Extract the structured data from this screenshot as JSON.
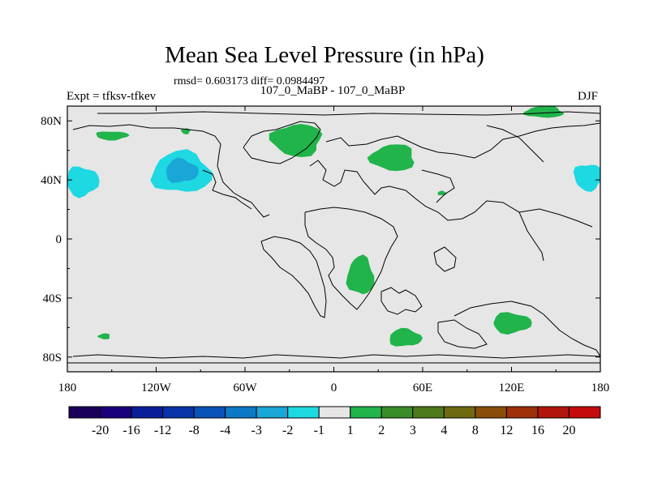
{
  "chart_data": {
    "type": "heatmap",
    "title": "Mean Sea Level Pressure (in hPa)",
    "stats_text": "rmsd= 0.603173 diff= 0.0984497",
    "subtitle": "107_0_MaBP - 107_0_MaBP",
    "left_label": "Expt = tfksv-tfkev",
    "right_label": "DJF",
    "xlabel": "",
    "ylabel": "",
    "x_range": [
      -180,
      180
    ],
    "y_range": [
      -90,
      90
    ],
    "x_ticks": [
      {
        "value": -180,
        "label": "180"
      },
      {
        "value": -120,
        "label": "120W"
      },
      {
        "value": -60,
        "label": "60W"
      },
      {
        "value": 0,
        "label": "0"
      },
      {
        "value": 60,
        "label": "60E"
      },
      {
        "value": 120,
        "label": "120E"
      },
      {
        "value": 180,
        "label": "180"
      }
    ],
    "y_ticks": [
      {
        "value": 80,
        "label": "80N"
      },
      {
        "value": 40,
        "label": "40N"
      },
      {
        "value": 0,
        "label": "0"
      },
      {
        "value": -40,
        "label": "40S"
      },
      {
        "value": -80,
        "label": "80S"
      }
    ],
    "colorbar": {
      "colors": [
        "#1a005a",
        "#1a007a",
        "#0b1e9a",
        "#0833a8",
        "#0a52b8",
        "#0d79c6",
        "#1aa6d6",
        "#1ed8e2",
        "#e6e6e6",
        "#20b44a",
        "#3a8c28",
        "#4d7a1a",
        "#6e6a12",
        "#8a4e0a",
        "#9e300a",
        "#b0160c",
        "#c40c0c"
      ],
      "labels": [
        "-20",
        "-16",
        "-12",
        "-8",
        "-4",
        "-3",
        "-2",
        "-1",
        "1",
        "2",
        "3",
        "4",
        "8",
        "12",
        "16",
        "20"
      ]
    },
    "regions": [
      {
        "name": "north-pacific-low-outer",
        "level": "-1",
        "color": "#1ed8e2",
        "center": [
          -103,
          45
        ],
        "rx": 20,
        "ry": 14
      },
      {
        "name": "north-pacific-low-inner",
        "level": "-2",
        "color": "#1aa6d6",
        "center": [
          -103,
          46
        ],
        "rx": 11,
        "ry": 8
      },
      {
        "name": "west-pacific-low-west",
        "level": "-1",
        "color": "#1ed8e2",
        "center": [
          -170,
          39
        ],
        "rx": 11,
        "ry": 10
      },
      {
        "name": "west-pacific-low-east",
        "level": "-1",
        "color": "#1ed8e2",
        "center": [
          172,
          42
        ],
        "rx": 10,
        "ry": 9
      },
      {
        "name": "greenland-high",
        "level": "1",
        "color": "#20b44a",
        "center": [
          -25,
          67
        ],
        "rx": 17,
        "ry": 11
      },
      {
        "name": "central-asia-high",
        "level": "1",
        "color": "#20b44a",
        "center": [
          40,
          55
        ],
        "rx": 15,
        "ry": 9
      },
      {
        "name": "africa-high",
        "level": "1",
        "color": "#20b44a",
        "center": [
          18,
          -25
        ],
        "rx": 9,
        "ry": 13
      },
      {
        "name": "southern-ocean-high-west",
        "level": "1",
        "color": "#20b44a",
        "center": [
          48,
          -67
        ],
        "rx": 11,
        "ry": 6
      },
      {
        "name": "southern-ocean-high-east",
        "level": "1",
        "color": "#20b44a",
        "center": [
          120,
          -57
        ],
        "rx": 13,
        "ry": 7
      },
      {
        "name": "north-pacific-high",
        "level": "1",
        "color": "#20b44a",
        "center": [
          -150,
          70
        ],
        "rx": 11,
        "ry": 3
      },
      {
        "name": "alaska-small-high",
        "level": "1",
        "color": "#20b44a",
        "center": [
          -100,
          73
        ],
        "rx": 3,
        "ry": 2
      },
      {
        "name": "south-pacific-small-high",
        "level": "1",
        "color": "#20b44a",
        "center": [
          -155,
          -66
        ],
        "rx": 4,
        "ry": 2
      },
      {
        "name": "arctic-high",
        "level": "1",
        "color": "#20b44a",
        "center": [
          142,
          86
        ],
        "rx": 13,
        "ry": 4
      },
      {
        "name": "east-asia-small-high",
        "level": "1",
        "color": "#20b44a",
        "center": [
          73,
          31
        ],
        "rx": 3,
        "ry": 1.5
      }
    ]
  }
}
